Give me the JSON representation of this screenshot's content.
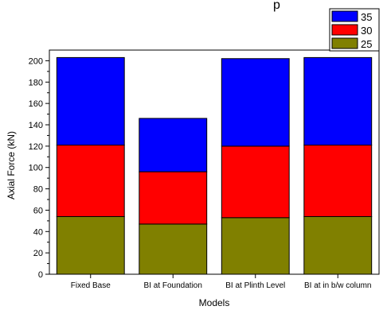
{
  "title_fragment": "p",
  "chart_data": {
    "type": "bar",
    "stacked": true,
    "categories": [
      "Fixed Base",
      "BI at Foundation",
      "BI at Plinth Level",
      "BI at in b/w column"
    ],
    "series": [
      {
        "name": "25",
        "color": "#808000",
        "values": [
          54,
          47,
          53,
          54
        ]
      },
      {
        "name": "30",
        "color": "#ff0000",
        "values": [
          67,
          49,
          67,
          67
        ]
      },
      {
        "name": "35",
        "color": "#0000ff",
        "values": [
          82,
          50,
          82,
          82
        ]
      }
    ],
    "xlabel": "Models",
    "ylabel": "Axial Force (kN)",
    "ylim": [
      0,
      210
    ],
    "yticks": [
      0,
      20,
      40,
      60,
      80,
      100,
      120,
      140,
      160,
      180,
      200
    ],
    "legend_order": [
      "35",
      "30",
      "25"
    ],
    "legend_position": "top-right",
    "grid": false
  }
}
